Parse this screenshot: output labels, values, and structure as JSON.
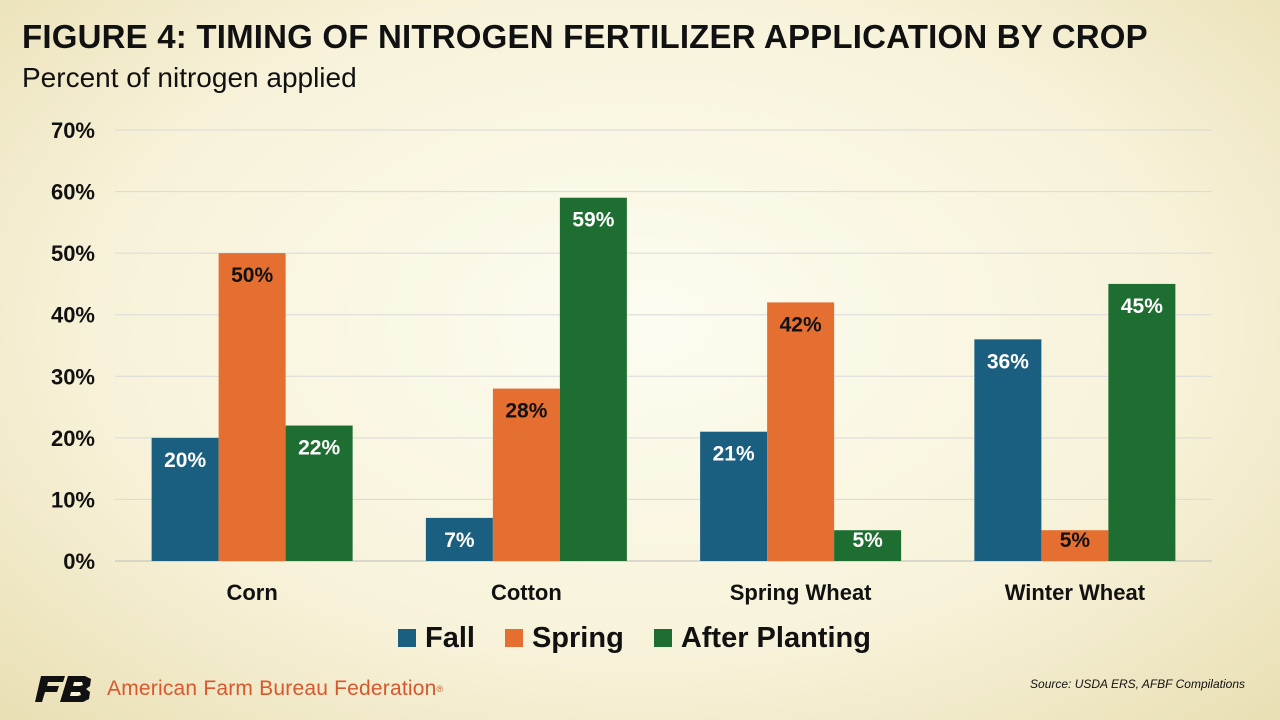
{
  "header": {
    "title": "FIGURE 4: TIMING OF NITROGEN FERTILIZER APPLICATION BY CROP",
    "subtitle": "Percent of nitrogen applied"
  },
  "chart_data": {
    "type": "bar",
    "categories": [
      "Corn",
      "Cotton",
      "Spring Wheat",
      "Winter Wheat"
    ],
    "series": [
      {
        "name": "Fall",
        "values": [
          20,
          7,
          21,
          36
        ],
        "color": "#1a5e80"
      },
      {
        "name": "Spring",
        "values": [
          50,
          28,
          42,
          5
        ],
        "color": "#e46f31"
      },
      {
        "name": "After Planting",
        "values": [
          22,
          59,
          5,
          45
        ],
        "color": "#1e6e32"
      }
    ],
    "data_labels": [
      [
        "20%",
        "7%",
        "21%",
        "36%"
      ],
      [
        "50%",
        "28%",
        "42%",
        "5%"
      ],
      [
        "22%",
        "59%",
        "5%",
        "45%"
      ]
    ],
    "ylim": [
      0,
      70
    ],
    "yticks": [
      0,
      10,
      20,
      30,
      40,
      50,
      60,
      70
    ],
    "ytick_labels": [
      "0%",
      "10%",
      "20%",
      "30%",
      "40%",
      "50%",
      "60%",
      "70%"
    ],
    "grid": true,
    "legend_position": "bottom"
  },
  "footer": {
    "source": "Source: USDA ERS, AFBF Compilations",
    "org_name": "American Farm Bureau Federation",
    "registered_mark": "®",
    "logo_icon": "fb-logo-icon"
  }
}
